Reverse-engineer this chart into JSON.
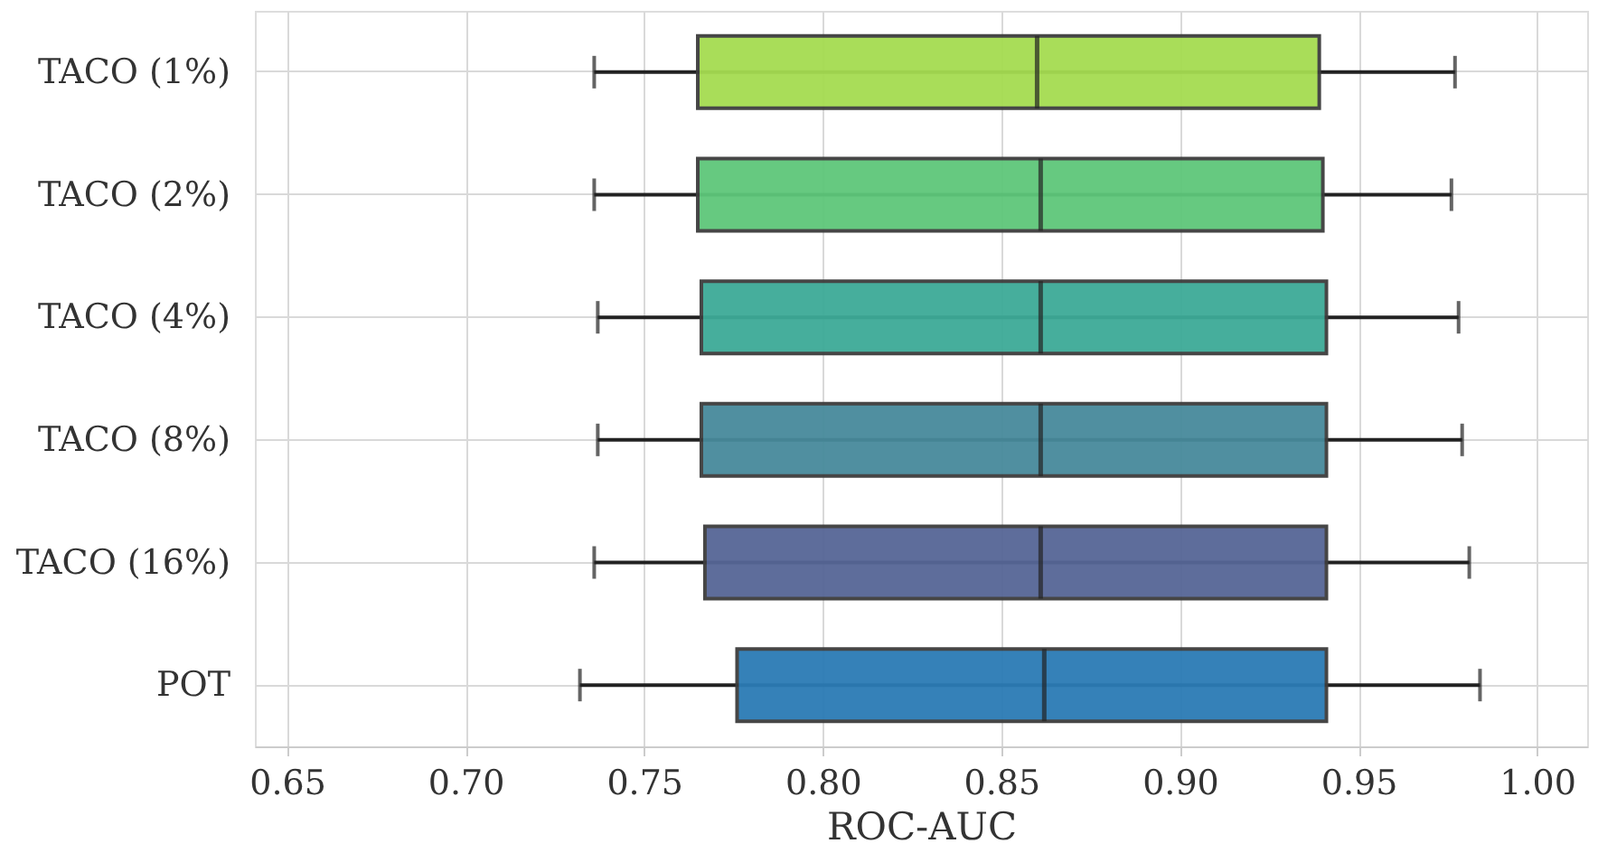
{
  "chart_data": {
    "type": "box",
    "orientation": "horizontal",
    "xlabel": "ROC-AUC",
    "categories": [
      "TACO (1%)",
      "TACO (2%)",
      "TACO (4%)",
      "TACO (8%)",
      "TACO (16%)",
      "POT"
    ],
    "colors": [
      "#a5dc51",
      "#5ec77a",
      "#3daa97",
      "#478a9b",
      "#566696",
      "#2b7bb5"
    ],
    "boxes": [
      {
        "low": 0.736,
        "q1": 0.765,
        "median": 0.86,
        "q3": 0.939,
        "high": 0.977
      },
      {
        "low": 0.736,
        "q1": 0.765,
        "median": 0.861,
        "q3": 0.94,
        "high": 0.976
      },
      {
        "low": 0.737,
        "q1": 0.766,
        "median": 0.861,
        "q3": 0.941,
        "high": 0.978
      },
      {
        "low": 0.737,
        "q1": 0.766,
        "median": 0.861,
        "q3": 0.941,
        "high": 0.979
      },
      {
        "low": 0.736,
        "q1": 0.767,
        "median": 0.861,
        "q3": 0.941,
        "high": 0.981
      },
      {
        "low": 0.732,
        "q1": 0.776,
        "median": 0.862,
        "q3": 0.941,
        "high": 0.984
      }
    ],
    "xlim": [
      0.641,
      1.014
    ],
    "xticks": [
      0.65,
      {
        "value": 0.7,
        "label": "0.70"
      },
      0.75,
      {
        "value": 0.8,
        "label": "0.80"
      },
      0.85,
      {
        "value": 0.9,
        "label": "0.90"
      },
      0.95,
      {
        "value": 1.0,
        "label": "1.00"
      }
    ],
    "grid": true
  }
}
